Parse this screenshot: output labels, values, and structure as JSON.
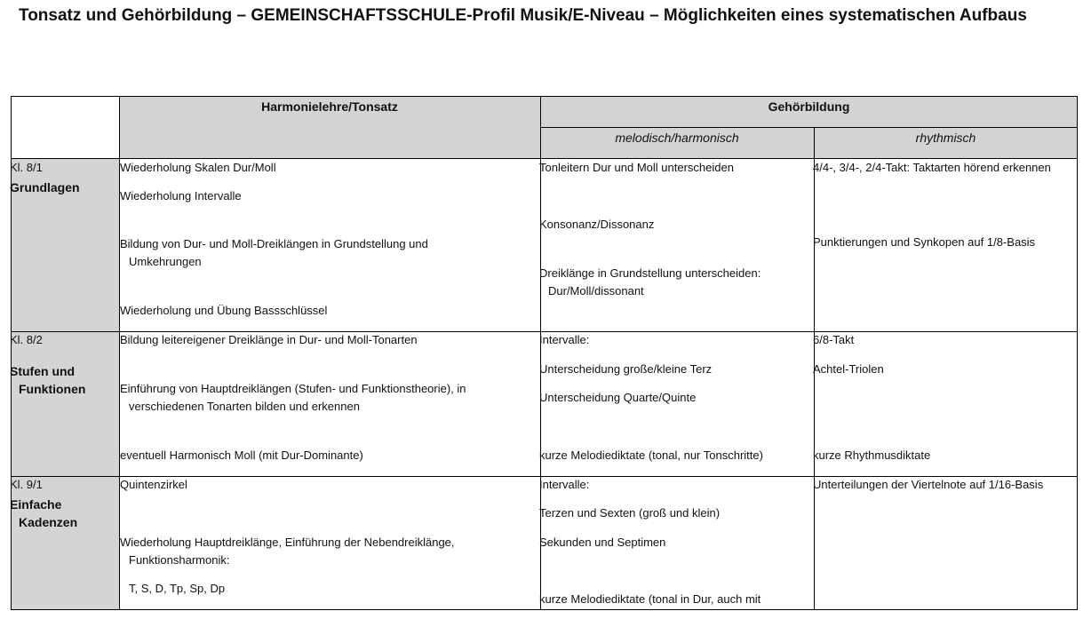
{
  "title": "Tonsatz und Gehörbildung – GEMEINSCHAFTSSCHULE-Profil Musik/E-Niveau – Möglichkeiten eines systematischen Aufbaus",
  "table": {
    "headers": {
      "harmonielehre": "Harmonielehre/Tonsatz",
      "gehoerbildung": "Gehörbildung",
      "melodisch": "melodisch/harmonisch",
      "rhythmisch": "rhythmisch"
    },
    "rows": [
      {
        "level": "Kl. 8/1",
        "topic": "Grundlagen",
        "harmonielehre": [
          "Wiederholung Skalen Dur/Moll",
          "Wiederholung Intervalle",
          "Bildung von Dur- und Moll-Dreiklängen in Grundstellung und Umkehrungen",
          "Wiederholung und Übung Bassschlüssel"
        ],
        "melodisch": [
          "Tonleitern Dur und Moll unterscheiden",
          "Konsonanz/Dissonanz",
          "Dreiklänge in Grundstellung unterscheiden: Dur/Moll/dissonant"
        ],
        "rhythmisch": [
          "4/4-, 3/4-, 2/4-Takt: Taktarten hörend erkennen",
          "Punktierungen und Synkopen auf 1/8-Basis"
        ]
      },
      {
        "level": "Kl. 8/2",
        "topic": "Stufen und Funktionen",
        "harmonielehre": [
          "Bildung leitereigener Dreiklänge in Dur- und Moll-Tonarten",
          "Einführung von Hauptdreiklängen (Stufen- und Funktionstheorie), in verschiedenen Tonarten bilden und erkennen",
          "eventuell Harmonisch Moll (mit Dur-Dominante)"
        ],
        "melodisch": [
          "Intervalle:",
          "Unterscheidung große/kleine Terz",
          "Unterscheidung Quarte/Quinte",
          "kurze Melodiediktate (tonal, nur Tonschritte)"
        ],
        "rhythmisch": [
          "6/8-Takt",
          "Achtel-Triolen",
          "kurze Rhythmusdiktate"
        ]
      },
      {
        "level": "Kl. 9/1",
        "topic": "Einfache Kadenzen",
        "harmonielehre": [
          "Quintenzirkel",
          "Wiederholung Hauptdreiklänge, Einführung der Nebendreiklänge, Funktionsharmonik:",
          "T, S, D, Tp, Sp, Dp"
        ],
        "melodisch": [
          "Intervalle:",
          "Terzen und Sexten (groß und klein)",
          "Sekunden und Septimen",
          "kurze Melodiediktate (tonal in Dur, auch mit"
        ],
        "rhythmisch": [
          "Unterteilungen der Viertelnote auf 1/16-Basis"
        ]
      }
    ]
  }
}
